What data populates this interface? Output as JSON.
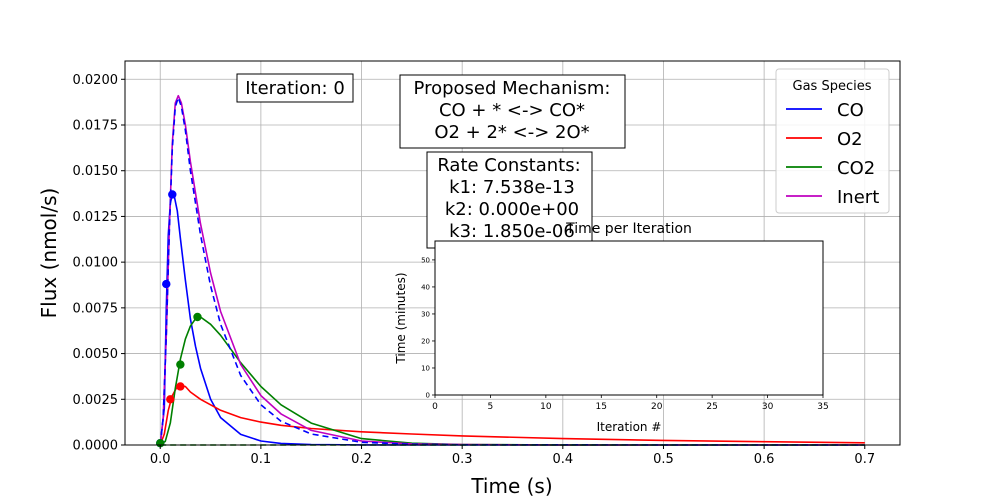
{
  "chart_data": [
    {
      "type": "line",
      "xlabel": "Time (s)",
      "ylabel": "Flux (nmol/s)",
      "xlim": [
        -0.035,
        0.735
      ],
      "ylim": [
        0,
        0.021
      ],
      "grid": true,
      "x_ticks": [
        "0.0",
        "0.1",
        "0.2",
        "0.3",
        "0.4",
        "0.5",
        "0.6",
        "0.7"
      ],
      "x_tick_values": [
        0,
        0.1,
        0.2,
        0.3,
        0.4,
        0.5,
        0.6,
        0.7
      ],
      "y_ticks": [
        "0.0000",
        "0.0025",
        "0.0050",
        "0.0075",
        "0.0100",
        "0.0125",
        "0.0150",
        "0.0175",
        "0.0200"
      ],
      "y_tick_values": [
        0,
        0.0025,
        0.005,
        0.0075,
        0.01,
        0.0125,
        0.015,
        0.0175,
        0.02
      ],
      "legend": {
        "title": "Gas Species",
        "placement": "top-right",
        "entries": [
          {
            "label": "CO",
            "color": "#0000ff"
          },
          {
            "label": "O2",
            "color": "#ff0000"
          },
          {
            "label": "CO2",
            "color": "#008000"
          },
          {
            "label": "Inert",
            "color": "#bf00bf"
          }
        ]
      },
      "series": [
        {
          "name": "CO",
          "color": "#0000ff",
          "style": "solid",
          "x": [
            0,
            0.004,
            0.006,
            0.008,
            0.01,
            0.012,
            0.014,
            0.017,
            0.02,
            0.025,
            0.03,
            0.035,
            0.04,
            0.05,
            0.06,
            0.08,
            0.1,
            0.12,
            0.15,
            0.2,
            0.3,
            0.5,
            0.7
          ],
          "y": [
            0,
            0.002,
            0.0075,
            0.0115,
            0.0132,
            0.0137,
            0.0136,
            0.0128,
            0.0113,
            0.009,
            0.0069,
            0.0054,
            0.0042,
            0.0025,
            0.0015,
            0.00058,
            0.00022,
            9e-05,
            3e-05,
            5e-06,
            0,
            0,
            0
          ]
        },
        {
          "name": "O2",
          "color": "#ff0000",
          "style": "solid",
          "x": [
            0,
            0.004,
            0.008,
            0.012,
            0.016,
            0.02,
            0.025,
            0.03,
            0.04,
            0.05,
            0.06,
            0.08,
            0.1,
            0.12,
            0.15,
            0.2,
            0.25,
            0.3,
            0.4,
            0.5,
            0.6,
            0.7
          ],
          "y": [
            0,
            0.0006,
            0.0019,
            0.0027,
            0.0031,
            0.00325,
            0.0032,
            0.0029,
            0.0025,
            0.0022,
            0.0019,
            0.0015,
            0.00125,
            0.00108,
            0.0009,
            0.00072,
            0.0006,
            0.0005,
            0.00035,
            0.00025,
            0.00018,
            0.00012
          ]
        },
        {
          "name": "CO2",
          "color": "#008000",
          "style": "solid",
          "x": [
            0,
            0.005,
            0.01,
            0.015,
            0.02,
            0.025,
            0.03,
            0.035,
            0.04,
            0.05,
            0.06,
            0.08,
            0.1,
            0.12,
            0.15,
            0.2,
            0.25,
            0.3,
            0.4,
            0.5,
            0.7
          ],
          "y": [
            0,
            0.0002,
            0.0012,
            0.0031,
            0.0047,
            0.0058,
            0.0065,
            0.0069,
            0.007,
            0.0066,
            0.006,
            0.0045,
            0.0032,
            0.0022,
            0.0012,
            0.00035,
            0.0001,
            3e-05,
            0,
            0,
            0
          ]
        },
        {
          "name": "Inert",
          "color": "#bf00bf",
          "style": "solid",
          "x": [
            0,
            0.003,
            0.006,
            0.009,
            0.012,
            0.015,
            0.018,
            0.021,
            0.025,
            0.03,
            0.04,
            0.05,
            0.06,
            0.08,
            0.1,
            0.12,
            0.15,
            0.2,
            0.25,
            0.3,
            0.4,
            0.5,
            0.7
          ],
          "y": [
            0,
            0.0015,
            0.006,
            0.0118,
            0.0165,
            0.0187,
            0.0191,
            0.0187,
            0.0175,
            0.0155,
            0.0121,
            0.0094,
            0.0073,
            0.0044,
            0.0027,
            0.0017,
            0.0008,
            0.00022,
            6e-05,
            2e-05,
            0,
            0,
            0
          ]
        },
        {
          "color": "#0000ff",
          "style": "dashed",
          "x": [
            0,
            0.003,
            0.006,
            0.009,
            0.012,
            0.015,
            0.018,
            0.021,
            0.025,
            0.03,
            0.04,
            0.05,
            0.06,
            0.08,
            0.1,
            0.12,
            0.15,
            0.2,
            0.25,
            0.3,
            0.7
          ],
          "y": [
            0,
            0.0015,
            0.006,
            0.0116,
            0.0162,
            0.0185,
            0.019,
            0.0185,
            0.0172,
            0.015,
            0.0115,
            0.0087,
            0.0066,
            0.0038,
            0.0022,
            0.0013,
            0.0006,
            0.00015,
            4e-05,
            1e-05,
            0
          ]
        },
        {
          "color": "#008000",
          "style": "dashed",
          "x": [
            0,
            0.7
          ],
          "y": [
            0,
            0
          ]
        }
      ],
      "markers": [
        {
          "x": 0.0,
          "y": 0.0001,
          "color": "#0000ff"
        },
        {
          "x": 0.006,
          "y": 0.0088,
          "color": "#0000ff"
        },
        {
          "x": 0.012,
          "y": 0.0137,
          "color": "#0000ff"
        },
        {
          "x": 0.01,
          "y": 0.0025,
          "color": "#ff0000"
        },
        {
          "x": 0.02,
          "y": 0.0032,
          "color": "#ff0000"
        },
        {
          "x": 0.02,
          "y": 0.0044,
          "color": "#008000"
        },
        {
          "x": 0.037,
          "y": 0.007,
          "color": "#008000"
        },
        {
          "x": 0.0,
          "y": 0.0001,
          "color": "#008000"
        }
      ],
      "annotations": {
        "iteration": "Iteration: 0",
        "mechanism": [
          "Proposed Mechanism:",
          "CO + * <-> CO*",
          "O2 + 2* <-> 2O*"
        ],
        "rate_constants": [
          "Rate Constants:",
          "k1: 7.538e-13",
          "k2: 0.000e+00",
          "k3: 1.850e-06"
        ]
      }
    },
    {
      "type": "line",
      "title": "Time per Iteration",
      "xlabel": "Iteration #",
      "ylabel": "Time (minutes)",
      "xlim": [
        0,
        35
      ],
      "ylim": [
        0,
        57
      ],
      "x_ticks": [
        "0",
        "5",
        "10",
        "15",
        "20",
        "25",
        "30",
        "35"
      ],
      "x_tick_values": [
        0,
        5,
        10,
        15,
        20,
        25,
        30,
        35
      ],
      "y_ticks": [
        "0",
        "10",
        "20",
        "30",
        "40",
        "50"
      ],
      "y_tick_values": [
        0,
        10,
        20,
        30,
        40,
        50
      ],
      "series": []
    }
  ]
}
